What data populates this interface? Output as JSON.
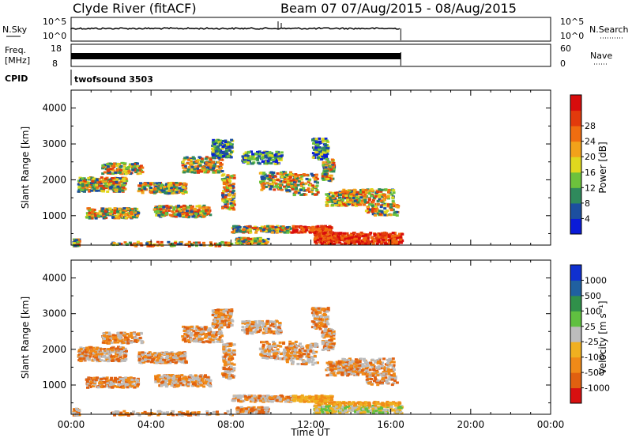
{
  "header": {
    "station": "Clyde River (fitACF)",
    "beam": "Beam 07 07/Aug/2015 - 08/Aug/2015"
  },
  "aux_panels": {
    "nsky_label": "N.Sky",
    "nsearch_label": "N.Search",
    "freq_label_1": "Freq.",
    "freq_label_2": "[MHz]",
    "nave_label": "Nave",
    "cpid_label": "CPID",
    "cpid_value": "twofsound 3503",
    "nsky_ticks": [
      "10^5",
      "10^0"
    ],
    "nsearch_ticks": [
      "10^5",
      "10^0"
    ],
    "freq_ticks": [
      "18",
      "8"
    ],
    "nave_ticks": [
      "60",
      "0"
    ]
  },
  "chart_data": [
    {
      "type": "heatmap",
      "name": "power-panel",
      "xlabel": "",
      "ylabel": "Slant Range [km]",
      "xlim": [
        0,
        24
      ],
      "ylim": [
        180,
        4500
      ],
      "y_ticks": [
        1000,
        2000,
        3000,
        4000
      ],
      "data_end_hour": 16.5,
      "colorbar": {
        "label": "Power [dB]",
        "ticks": [
          "4",
          "8",
          "12",
          "16",
          "20",
          "24",
          "28"
        ],
        "colors": [
          "#0a1bd8",
          "#1c4fa0",
          "#2f8a5c",
          "#6cc23c",
          "#e0d81e",
          "#f2a21a",
          "#f06d10",
          "#e23a0c",
          "#d80c0c"
        ]
      }
    },
    {
      "type": "heatmap",
      "name": "velocity-panel",
      "xlabel": "Time UT",
      "ylabel": "Slant Range [km]",
      "xlim": [
        0,
        24
      ],
      "ylim": [
        180,
        4500
      ],
      "y_ticks": [
        1000,
        2000,
        3000,
        4000
      ],
      "x_ticks": [
        "00:00",
        "04:00",
        "08:00",
        "12:00",
        "16:00",
        "20:00",
        "00:00"
      ],
      "data_end_hour": 16.5,
      "colorbar": {
        "label": "Velocity [m s⁻¹]",
        "ticks": [
          "1000",
          "500",
          "100",
          "25",
          "-25",
          "-100",
          "-500",
          "-1000"
        ],
        "colors": [
          "#1030d0",
          "#2060a0",
          "#30904a",
          "#60c040",
          "#bcbcbc",
          "#f0b020",
          "#f08a18",
          "#e06010",
          "#d81010"
        ]
      }
    }
  ]
}
